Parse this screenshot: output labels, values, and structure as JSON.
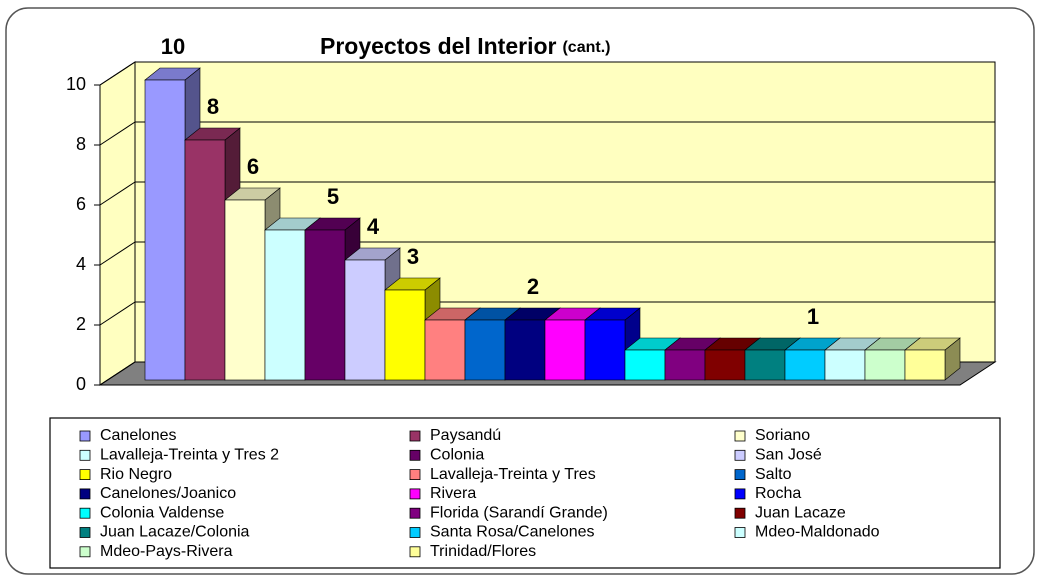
{
  "chart_data": {
    "type": "bar3d",
    "title": "Proyectos del Interior",
    "title_suffix": "(cant.)",
    "categories": [
      "Canelones",
      "Paysandú",
      "Soriano",
      "Lavalleja-Treinta y Tres 2",
      "Colonia",
      "San José",
      "Rio Negro",
      "Lavalleja-Treinta y Tres",
      "Salto",
      "Canelones/Joanico",
      "Rivera",
      "Rocha",
      "Colonia Valdense",
      "Florida (Sarandí Grande)",
      "Juan Lacaze",
      "Juan Lacaze/Colonia",
      "Santa Rosa/Canelones",
      "Mdeo-Maldonado",
      "Mdeo-Pays-Rivera",
      "Trinidad/Flores"
    ],
    "values": [
      10,
      8,
      6,
      5,
      5,
      4,
      3,
      2,
      2,
      2,
      2,
      2,
      1,
      1,
      1,
      1,
      1,
      1,
      1,
      1
    ],
    "value_labels": [
      "10",
      "8",
      "6",
      null,
      "5",
      "4",
      "3",
      null,
      null,
      "2",
      null,
      null,
      null,
      null,
      null,
      null,
      "1",
      null,
      null,
      null
    ],
    "colors": [
      "#9999ff",
      "#993366",
      "#ffffcc",
      "#ccffff",
      "#660066",
      "#ccccff",
      "#ffff00",
      "#ff8080",
      "#0066cc",
      "#000080",
      "#ff00ff",
      "#0000ff",
      "#00ffff",
      "#800080",
      "#800000",
      "#008080",
      "#00ccff",
      "#ccffff",
      "#ccffcc",
      "#ffff99"
    ],
    "ylim": [
      0,
      10
    ],
    "yticks": [
      0,
      2,
      4,
      6,
      8,
      10
    ],
    "grid": true,
    "legend": "bottom"
  }
}
